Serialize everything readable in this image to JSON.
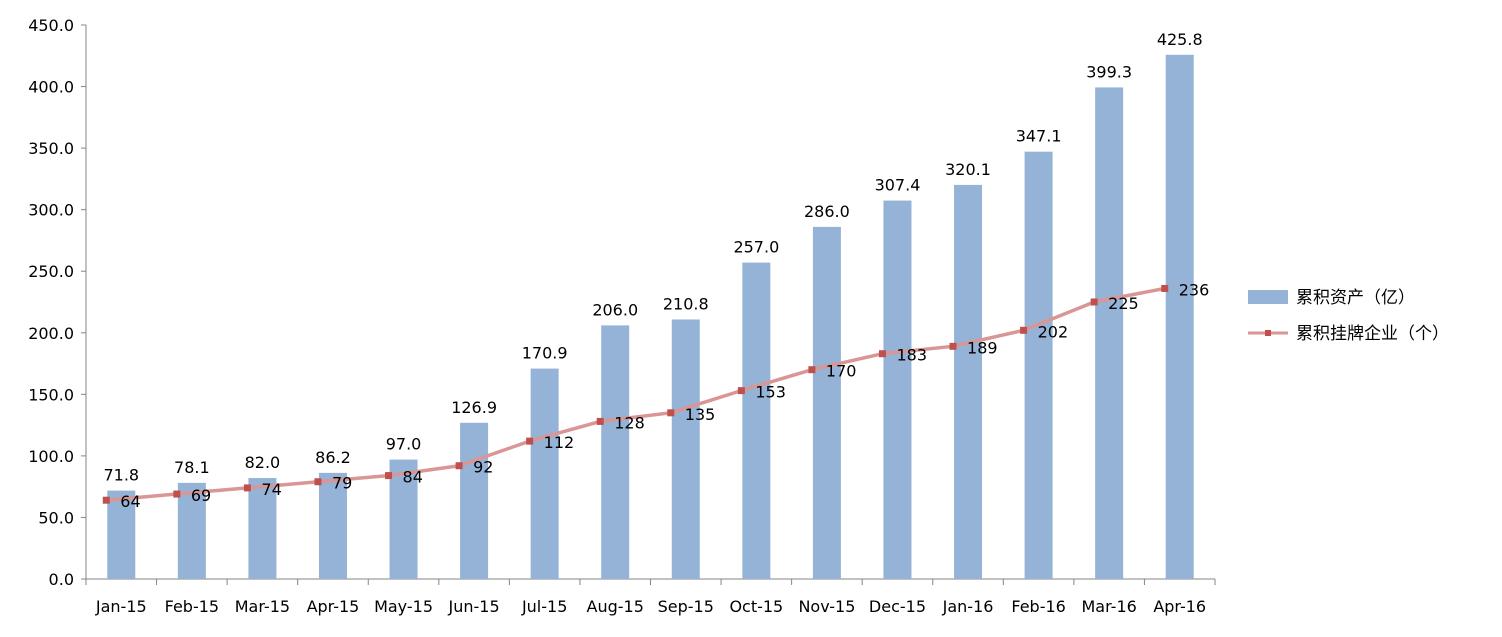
{
  "chart_data": {
    "type": "bar",
    "categories": [
      "Jan-15",
      "Feb-15",
      "Mar-15",
      "Apr-15",
      "May-15",
      "Jun-15",
      "Jul-15",
      "Aug-15",
      "Sep-15",
      "Oct-15",
      "Nov-15",
      "Dec-15",
      "Jan-16",
      "Feb-16",
      "Mar-16",
      "Apr-16"
    ],
    "series": [
      {
        "name": "累积资产（亿）",
        "type": "bar",
        "values": [
          71.8,
          78.1,
          82.0,
          86.2,
          97.0,
          126.9,
          170.9,
          206.0,
          210.8,
          257.0,
          286.0,
          307.4,
          320.1,
          347.1,
          399.3,
          425.8
        ],
        "value_labels": [
          "71.8",
          "78.1",
          "82.0",
          "86.2",
          "97.0",
          "126.9",
          "170.9",
          "206.0",
          "210.8",
          "257.0",
          "286.0",
          "307.4",
          "320.1",
          "347.1",
          "399.3",
          "425.8"
        ],
        "color": "#95B3D7"
      },
      {
        "name": "累积挂牌企业（个）",
        "type": "line",
        "values": [
          64,
          69,
          74,
          79,
          84,
          92,
          112,
          128,
          135,
          153,
          170,
          183,
          189,
          202,
          225,
          236
        ],
        "value_labels": [
          "64",
          "69",
          "74",
          "79",
          "84",
          "92",
          "112",
          "128",
          "135",
          "153",
          "170",
          "183",
          "189",
          "202",
          "225",
          "236"
        ],
        "color": "#D99694",
        "marker_color": "#C0504D"
      }
    ],
    "ylim": [
      0,
      450
    ],
    "yticks": [
      "0.0",
      "50.0",
      "100.0",
      "150.0",
      "200.0",
      "250.0",
      "300.0",
      "350.0",
      "400.0",
      "450.0"
    ],
    "grid": false,
    "legend_position": "right"
  }
}
